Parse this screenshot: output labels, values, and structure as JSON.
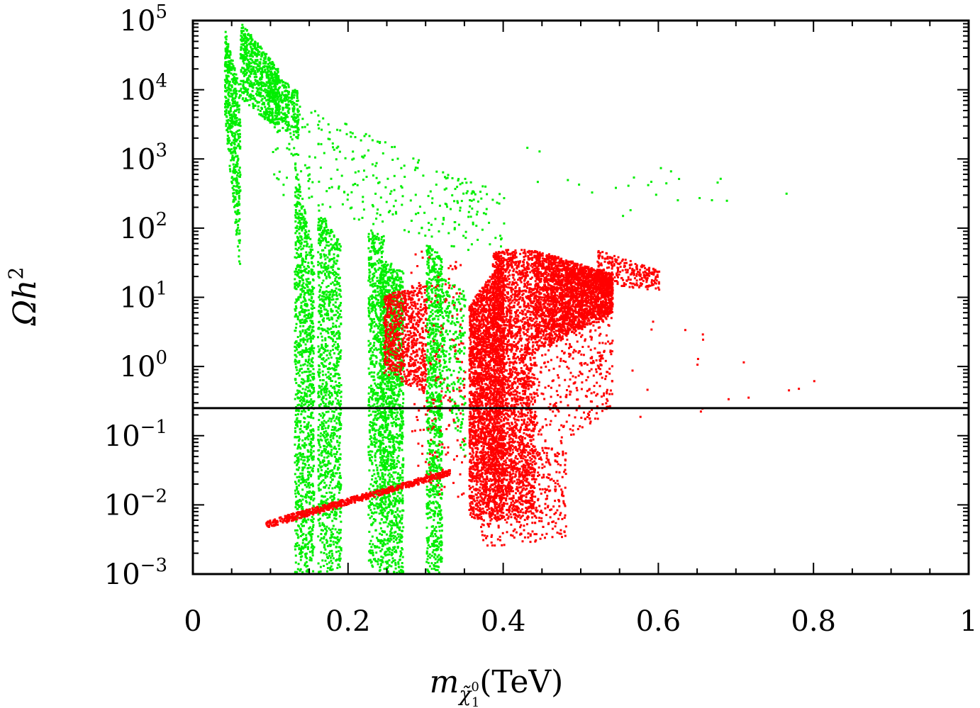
{
  "chart_data": {
    "type": "scatter",
    "title": "",
    "xlabel": {
      "main": "m",
      "sub_main": "χ̃",
      "sub_sup": "0",
      "sub_sub": "1",
      "unit": "(TeV)"
    },
    "ylabel": {
      "main": "Ωh",
      "sup": "2"
    },
    "xlim": [
      0,
      1
    ],
    "ylim_log10": [
      -3,
      5
    ],
    "y_scale": "log",
    "x_ticks": [
      "0",
      "0.2",
      "0.4",
      "0.6",
      "0.8",
      "1"
    ],
    "x_tick_values": [
      0,
      0.2,
      0.4,
      0.6,
      0.8,
      1
    ],
    "y_ticks": [
      {
        "base": "10",
        "exp": "5",
        "value": 5
      },
      {
        "base": "10",
        "exp": "4",
        "value": 4
      },
      {
        "base": "10",
        "exp": "3",
        "value": 3
      },
      {
        "base": "10",
        "exp": "2",
        "value": 2
      },
      {
        "base": "10",
        "exp": "1",
        "value": 1
      },
      {
        "base": "10",
        "exp": "0",
        "value": 0
      },
      {
        "base": "10",
        "exp": "−1",
        "value": -1
      },
      {
        "base": "10",
        "exp": "−2",
        "value": -2
      },
      {
        "base": "10",
        "exp": "−3",
        "value": -3
      }
    ],
    "reference_line": {
      "y": 0.25,
      "color": "#000000"
    },
    "series": [
      {
        "name": "green",
        "color": "#00ee00",
        "clusters": [
          {
            "x": [
              0.04,
              0.06
            ],
            "log10y_top": [
              4.9,
              4.0
            ],
            "log10y_bottom": [
              3.6,
              1.3
            ],
            "n": 500
          },
          {
            "x": [
              0.06,
              0.11
            ],
            "log10y_top": [
              5.0,
              4.3
            ],
            "log10y_bottom": [
              3.9,
              3.4
            ],
            "n": 700
          },
          {
            "x": [
              0.095,
              0.135
            ],
            "log10y_top": [
              4.3,
              4.0
            ],
            "log10y_bottom": [
              3.6,
              3.3
            ],
            "n": 250
          },
          {
            "x": [
              0.13,
              0.155
            ],
            "log10y_top": [
              3.0,
              1.6
            ],
            "log10y_bottom": [
              -3.0,
              -3.0
            ],
            "n": 1100
          },
          {
            "x": [
              0.16,
              0.19
            ],
            "log10y_top": [
              2.3,
              1.8
            ],
            "log10y_bottom": [
              -3.0,
              -3.0
            ],
            "n": 1100
          },
          {
            "x": [
              0.225,
              0.245
            ],
            "log10y_top": [
              2.0,
              1.9
            ],
            "log10y_bottom": [
              -2.9,
              -3.0
            ],
            "n": 700
          },
          {
            "x": [
              0.24,
              0.27
            ],
            "log10y_top": [
              1.6,
              1.4
            ],
            "log10y_bottom": [
              -3.0,
              -3.0
            ],
            "n": 1400
          },
          {
            "x": [
              0.3,
              0.32
            ],
            "log10y_top": [
              1.8,
              1.6
            ],
            "log10y_bottom": [
              -3.0,
              -3.0
            ],
            "n": 900
          },
          {
            "x": [
              0.32,
              0.35
            ],
            "log10y_top": [
              1.3,
              1.1
            ],
            "log10y_bottom": [
              -0.2,
              -1.5
            ],
            "n": 250
          },
          {
            "x": [
              0.1,
              0.4
            ],
            "log10y_top": [
              4.0,
              2.5
            ],
            "log10y_bottom": [
              2.5,
              1.5
            ],
            "n": 320
          },
          {
            "x": [
              0.4,
              0.78
            ],
            "log10y_top": [
              3.4,
              2.5
            ],
            "log10y_bottom": [
              2.0,
              2.4
            ],
            "n": 25
          }
        ]
      },
      {
        "name": "red",
        "color": "#ff0000",
        "clusters": [
          {
            "x": [
              0.092,
              0.33
            ],
            "log10y_top": [
              -2.22,
              -1.48
            ],
            "log10y_bottom": [
              -2.33,
              -1.56
            ],
            "n": 650
          },
          {
            "x": [
              0.245,
              0.3
            ],
            "log10y_top": [
              1.05,
              1.22
            ],
            "log10y_bottom": [
              -0.1,
              -0.4
            ],
            "n": 750
          },
          {
            "x": [
              0.28,
              0.35
            ],
            "log10y_top": [
              1.8,
              1.5
            ],
            "log10y_bottom": [
              -1.8,
              -2.0
            ],
            "n": 200
          },
          {
            "x": [
              0.355,
              0.4
            ],
            "log10y_top": [
              0.9,
              1.6
            ],
            "log10y_bottom": [
              -2.2,
              -2.2
            ],
            "n": 2600
          },
          {
            "x": [
              0.385,
              0.44
            ],
            "log10y_top": [
              1.7,
              1.7
            ],
            "log10y_bottom": [
              -2.2,
              -2.2
            ],
            "n": 2200
          },
          {
            "x": [
              0.44,
              0.54
            ],
            "log10y_top": [
              1.7,
              1.35
            ],
            "log10y_bottom": [
              0.2,
              0.8
            ],
            "n": 2600
          },
          {
            "x": [
              0.37,
              0.48
            ],
            "log10y_top": [
              -1.0,
              -1.2
            ],
            "log10y_bottom": [
              -2.6,
              -2.5
            ],
            "n": 450
          },
          {
            "x": [
              0.44,
              0.54
            ],
            "log10y_top": [
              0.8,
              1.0
            ],
            "log10y_bottom": [
              -1.4,
              -0.6
            ],
            "n": 400
          },
          {
            "x": [
              0.52,
              0.6
            ],
            "log10y_top": [
              1.7,
              1.4
            ],
            "log10y_bottom": [
              1.2,
              1.1
            ],
            "n": 260
          },
          {
            "x": [
              0.56,
              0.8
            ],
            "log10y_top": [
              1.3,
              0.4
            ],
            "log10y_bottom": [
              -1.2,
              -0.3
            ],
            "n": 18
          }
        ]
      }
    ]
  }
}
